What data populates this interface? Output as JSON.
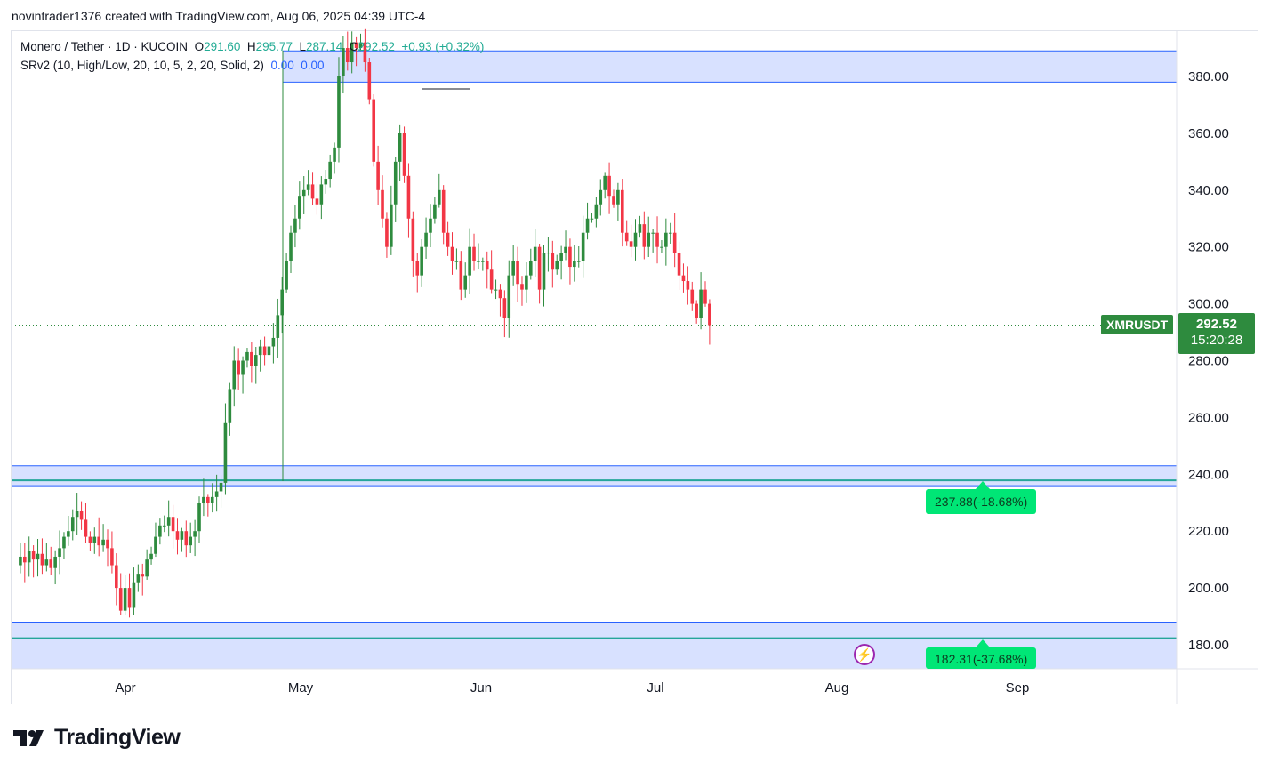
{
  "caption": "novintrader1376 created with TradingView.com, Aug 06, 2025 04:39 UTC-4",
  "legend": {
    "symbol": "Monero / Tether · 1D · KUCOIN",
    "open_label": "O",
    "open": "291.60",
    "high_label": "H",
    "high": "295.77",
    "low_label": "L",
    "low": "287.14",
    "close_label": "C",
    "close": "292.52",
    "change": "+0.93 (+0.32%)",
    "indicator": "SRv2 (10, High/Low, 20, 10, 5, 2, 20, Solid, 2)",
    "indicator_v1": "0.00",
    "indicator_v2": "0.00"
  },
  "price_tag": {
    "symbol": "XMRUSDT",
    "price": "292.52",
    "countdown": "15:20:28"
  },
  "zone_labels": {
    "upper": "237.88(-18.68%)",
    "lower": "182.31(-37.68%)"
  },
  "brand": "TradingView",
  "colors": {
    "up": "#2e8b3e",
    "down": "#f23645",
    "zone_fill": "#d1dcff",
    "zone_line": "#2962ff",
    "level": "#26a69a",
    "target": "#00e676"
  },
  "chart_data": {
    "type": "candlestick",
    "title": "Monero / Tether · 1D · KUCOIN",
    "ylim": [
      170,
      395
    ],
    "y_ticks": [
      "380.00",
      "360.00",
      "340.00",
      "320.00",
      "300.00",
      "280.00",
      "260.00",
      "240.00",
      "220.00",
      "200.00",
      "180.00"
    ],
    "x_labels": [
      "Apr",
      "May",
      "Jun",
      "Jul",
      "Aug",
      "Sep"
    ],
    "last_price": 292.52,
    "zones": [
      {
        "top": 389,
        "bottom": 378
      },
      {
        "top": 243,
        "bottom": 236
      },
      {
        "top": 188,
        "bottom": 171
      }
    ],
    "levels": [
      {
        "value": 237.88,
        "label": "237.88(-18.68%)"
      },
      {
        "value": 182.31,
        "label": "182.31(-37.68%)"
      }
    ],
    "candle_path": [
      208,
      211,
      209,
      213,
      210,
      212,
      208,
      210,
      207,
      211,
      214,
      218,
      220,
      225,
      227,
      224,
      218,
      216,
      218,
      215,
      217,
      214,
      208,
      200,
      192,
      200,
      193,
      202,
      205,
      204,
      210,
      212,
      218,
      222,
      222,
      225,
      220,
      217,
      220,
      215,
      218,
      220,
      230,
      232,
      230,
      232,
      234,
      237,
      258,
      270,
      280,
      275,
      280,
      283,
      278,
      282,
      285,
      282,
      285,
      288,
      296,
      305,
      315,
      325,
      330,
      338,
      340,
      342,
      337,
      335,
      342,
      344,
      350,
      355,
      380,
      390,
      385,
      392,
      390,
      392,
      385,
      372,
      350,
      340,
      330,
      320,
      335,
      350,
      360,
      345,
      330,
      315,
      310,
      320,
      325,
      330,
      335,
      340,
      325,
      320,
      315,
      315,
      305,
      310,
      320,
      315,
      315,
      315,
      312,
      305,
      305,
      302,
      295,
      310,
      315,
      307,
      305,
      310,
      315,
      320,
      305,
      318,
      318,
      312,
      315,
      318,
      320,
      313,
      315,
      315,
      325,
      330,
      330,
      335,
      340,
      345,
      338,
      335,
      340,
      325,
      322,
      320,
      325,
      328,
      320,
      325,
      325,
      320,
      320,
      325,
      325,
      318,
      310,
      308,
      305,
      300,
      295,
      305,
      300,
      292.52
    ]
  }
}
